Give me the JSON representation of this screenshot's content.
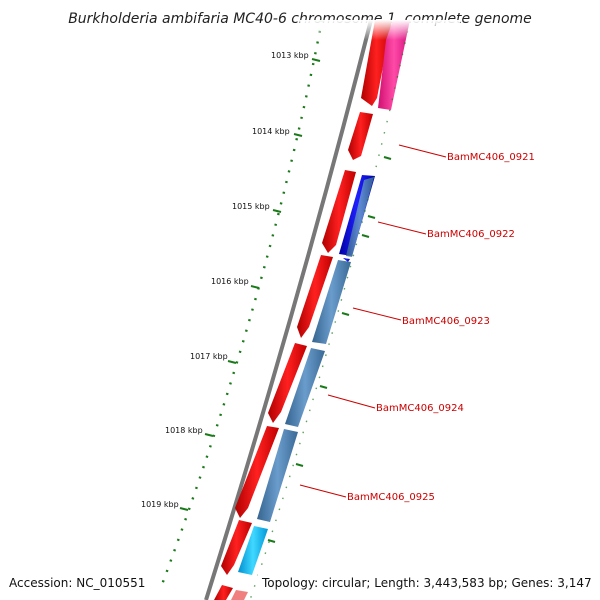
{
  "title": "Burkholderia ambifaria MC40-6 chromosome 1, complete genome",
  "accession_text": "Accession: NC_010551",
  "topology_text": "Topology: circular; Length: 3,443,583 bp; Genes: 3,147",
  "scale_ticks": [
    {
      "label": "1013 kbp"
    },
    {
      "label": "1014 kbp"
    },
    {
      "label": "1015 kbp"
    },
    {
      "label": "1016 kbp"
    },
    {
      "label": "1017 kbp"
    },
    {
      "label": "1018 kbp"
    },
    {
      "label": "1019 kbp"
    }
  ],
  "gene_labels": [
    {
      "text": "BamMC406_0921"
    },
    {
      "text": "BamMC406_0922"
    },
    {
      "text": "BamMC406_0923"
    },
    {
      "text": "BamMC406_0924"
    },
    {
      "text": "BamMC406_0925"
    }
  ],
  "colors": {
    "backbone": "#7a7a7a",
    "cds_red": "#ee0000",
    "cds_pink": "#ff1493",
    "cds_blue": "#0000dd",
    "cds_steel": "#4682b4",
    "cds_cyan": "#00bfff",
    "tick_green": "#1a7a1a",
    "label_red": "#cc0000"
  }
}
